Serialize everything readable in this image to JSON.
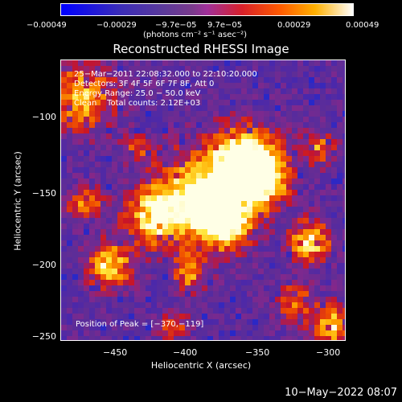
{
  "colorbar": {
    "ticks": [
      "−0.00049",
      "−0.00029",
      "−9.7e−05",
      "9.7e−05",
      "0.00029",
      "0.00049"
    ],
    "units": "(photons cm⁻² s⁻¹ asec⁻²)"
  },
  "title": "Reconstructed RHESSI Image",
  "info": {
    "time_range": "25−Mar−2011 22:08:32.000 to 22:10:20.000",
    "detectors": "Detectors: 3F 4F 5F 6F 7F 8F, Att 0",
    "energy": "Energy Range: 25.0 − 50.0 keV",
    "method": "Clean    Total counts: 2.12E+03",
    "peak": "Position of Peak = [−370,−119]"
  },
  "axes": {
    "ylabel": "Heliocentric Y (arcsec)",
    "xlabel": "Heliocentric X (arcsec)",
    "yticks": [
      "−100",
      "−150",
      "−200",
      "−250"
    ],
    "xticks": [
      "−450",
      "−400",
      "−350",
      "−300"
    ]
  },
  "footer": "10−May−2022 08:07"
}
